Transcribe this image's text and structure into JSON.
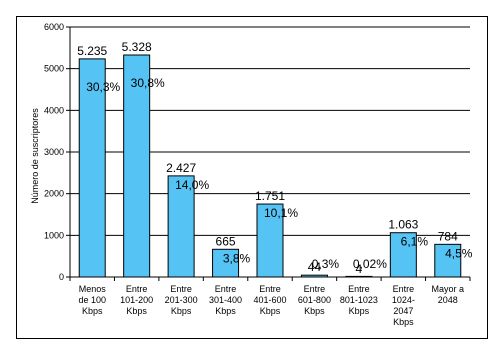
{
  "chart_data": {
    "type": "bar",
    "title": "",
    "xlabel": "",
    "ylabel": "Número de suscriptores",
    "ylim": [
      0,
      6000
    ],
    "yticks": [
      0,
      1000,
      2000,
      3000,
      4000,
      5000,
      6000
    ],
    "ytick_labels": [
      "0",
      "1000",
      "2000",
      "3000",
      "4000",
      "5000",
      "6000"
    ],
    "grid": true,
    "legend": false,
    "categories": [
      [
        "Menos",
        "de 100",
        "Kbps"
      ],
      [
        "Entre",
        "101-200",
        "Kbps"
      ],
      [
        "Entre",
        "201-300",
        "Kbps"
      ],
      [
        "Entre",
        "301-400",
        "Kbps"
      ],
      [
        "Entre",
        "401-600",
        "Kbps"
      ],
      [
        "Entre",
        "601-800",
        "Kbps"
      ],
      [
        "Entre",
        "801-1023",
        "Kbps"
      ],
      [
        "Entre",
        "1024-",
        "2047",
        "Kbps"
      ],
      [
        "Mayor a",
        "2048"
      ]
    ],
    "values": [
      5235,
      5328,
      2427,
      665,
      1751,
      44,
      4,
      1063,
      784
    ],
    "value_labels": [
      "5.235",
      "5.328",
      "2.427",
      "665",
      "1.751",
      "44",
      "4",
      "1.063",
      "784"
    ],
    "percent_labels": [
      "30,3%",
      "30,8%",
      "14,0%",
      "3,8%",
      "10,1%",
      "0,3%",
      "0,02%",
      "6,1%",
      "4,5%"
    ],
    "colors": {
      "bar_fill": "#55C4F4",
      "bar_stroke": "#000000",
      "grid": "#000000",
      "text": "#000000"
    }
  }
}
